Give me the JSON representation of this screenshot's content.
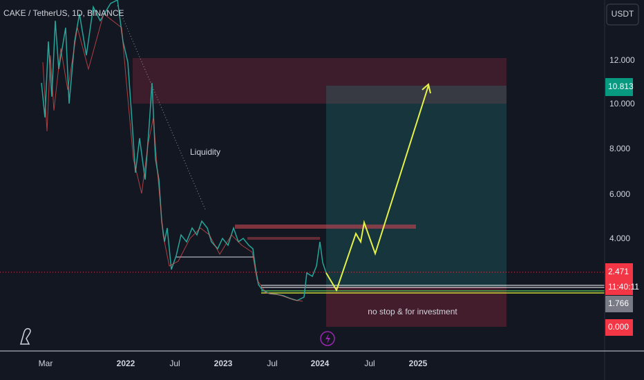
{
  "header": {
    "symbol": "CAKE / TetherUS, 1D, BINANCE"
  },
  "price_axis": {
    "currency": "USDT",
    "ticks": [
      "12.000",
      "10.000",
      "8.000",
      "6.000",
      "4.000"
    ],
    "target_label": "10.813",
    "last_price": "2.471",
    "countdown": "11:40:11",
    "stop_label": "1.766",
    "zero_label": "0.000"
  },
  "time_axis": {
    "ticks": [
      "Mar",
      "2022",
      "Jul",
      "2023",
      "Jul",
      "2024",
      "Jul",
      "2025"
    ]
  },
  "annotations": {
    "liquidity": "Liquidity",
    "note": "no stop & for investment"
  }
}
